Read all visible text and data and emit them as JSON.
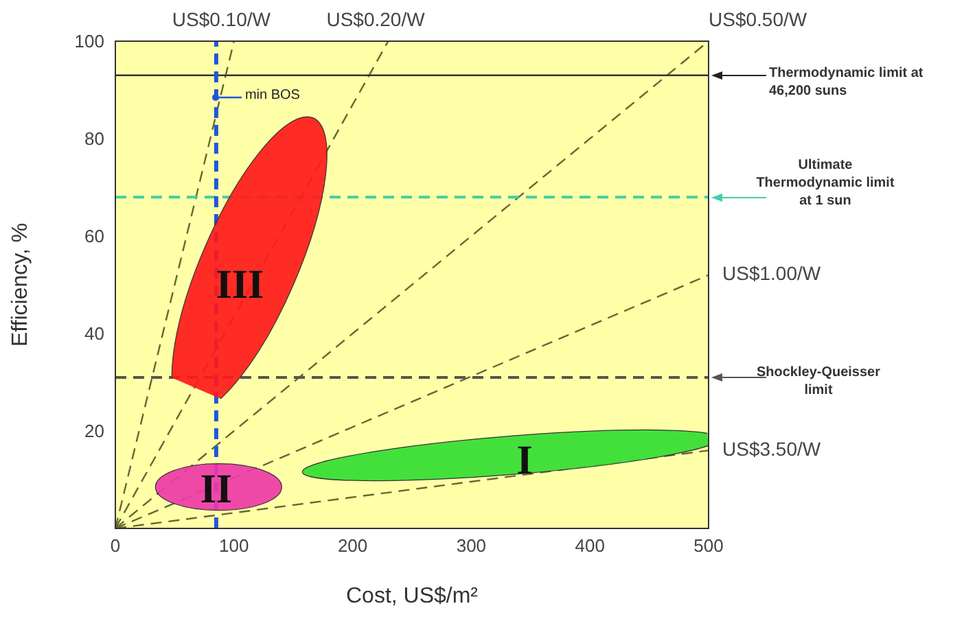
{
  "chart_data": {
    "type": "line",
    "xlabel": "Cost, US$/m²",
    "ylabel": "Efficiency, %",
    "xlim": [
      0,
      500
    ],
    "ylim": [
      0,
      100
    ],
    "xticks": [
      0,
      100,
      200,
      300,
      400,
      500
    ],
    "yticks": [
      20,
      40,
      60,
      80,
      100
    ],
    "grid": false,
    "marker": "none",
    "line_style": "dashed",
    "series": [
      {
        "name": "US$0.10/W",
        "color": "#666633",
        "x": [
          0,
          100
        ],
        "values": [
          0,
          100
        ]
      },
      {
        "name": "US$0.20/W",
        "color": "#666633",
        "x": [
          0,
          230
        ],
        "values": [
          0,
          100
        ]
      },
      {
        "name": "US$0.50/W",
        "color": "#666633",
        "x": [
          0,
          500
        ],
        "values": [
          0,
          100
        ]
      },
      {
        "name": "US$1.00/W",
        "color": "#666633",
        "x": [
          0,
          500
        ],
        "values": [
          0,
          52
        ]
      },
      {
        "name": "US$3.50/W",
        "color": "#666633",
        "x": [
          0,
          500
        ],
        "values": [
          0,
          16
        ]
      }
    ],
    "ref_lines": [
      {
        "axis": "y",
        "value": 93,
        "label": "Thermodynamic limit at 46,200 suns",
        "color": "#333333",
        "line_style": "solid"
      },
      {
        "axis": "y",
        "value": 68,
        "label": "Ultimate Thermodynamic limit at 1 sun",
        "color": "#44ccaa",
        "line_style": "dashed"
      },
      {
        "axis": "y",
        "value": 31,
        "label": "Shockley-Queisser limit",
        "color": "#555555",
        "line_style": "dashed"
      },
      {
        "axis": "x",
        "value": 85,
        "label": "min BOS",
        "color": "#2255dd",
        "line_style": "dashed"
      }
    ],
    "annotations": [
      "III",
      "II",
      "I"
    ]
  }
}
